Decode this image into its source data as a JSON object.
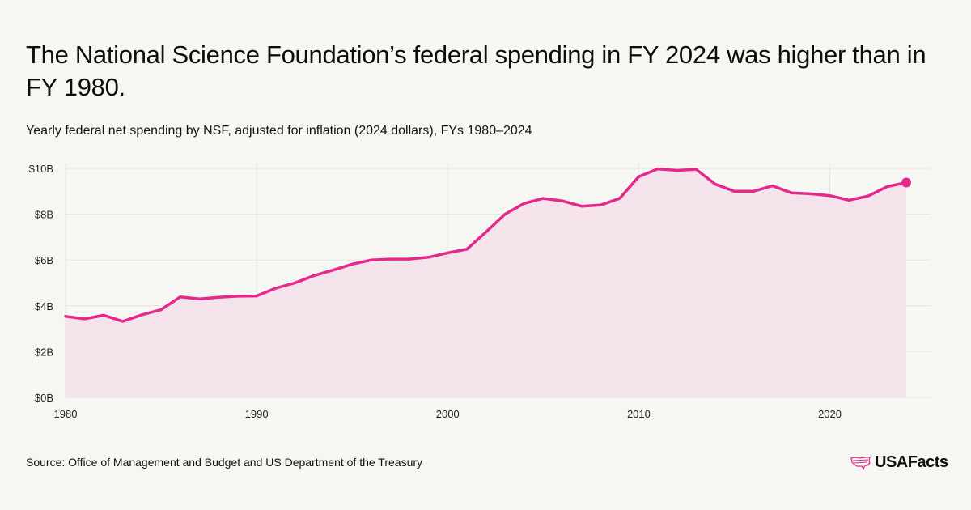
{
  "title": "The National Science Foundation’s federal spending in FY 2024 was higher than in FY 1980.",
  "subtitle": "Yearly federal net spending by NSF, adjusted for inflation (2024 dollars), FYs 1980–2024",
  "source": "Source: Office of Management and Budget and US Department of the Treasury",
  "logo": {
    "text": "USAFacts",
    "icon": "us-map-icon"
  },
  "colors": {
    "line": "#e4288c",
    "area": "#f4e3ea",
    "grid": "#e6e4e2",
    "background": "#f6f6f2"
  },
  "chart_data": {
    "type": "area",
    "title": "Yearly federal net spending by NSF, adjusted for inflation (2024 dollars), FYs 1980–2024",
    "xlabel": "",
    "ylabel": "",
    "x": [
      1980,
      1981,
      1982,
      1983,
      1984,
      1985,
      1986,
      1987,
      1988,
      1989,
      1990,
      1991,
      1992,
      1993,
      1994,
      1995,
      1996,
      1997,
      1998,
      1999,
      2000,
      2001,
      2002,
      2003,
      2004,
      2005,
      2006,
      2007,
      2008,
      2009,
      2010,
      2011,
      2012,
      2013,
      2014,
      2015,
      2016,
      2017,
      2018,
      2019,
      2020,
      2021,
      2022,
      2023,
      2024
    ],
    "series": [
      {
        "name": "NSF net spending (2024 dollars, $B)",
        "values": [
          3.54,
          3.43,
          3.59,
          3.32,
          3.61,
          3.83,
          4.39,
          4.3,
          4.37,
          4.42,
          4.43,
          4.77,
          5.0,
          5.32,
          5.56,
          5.82,
          6.0,
          6.04,
          6.04,
          6.12,
          6.31,
          6.47,
          7.22,
          8.0,
          8.47,
          8.69,
          8.58,
          8.35,
          8.4,
          8.69,
          9.64,
          9.98,
          9.91,
          9.96,
          9.31,
          9.0,
          9.0,
          9.24,
          8.93,
          8.89,
          8.81,
          8.61,
          8.79,
          9.2,
          9.38
        ]
      }
    ],
    "ylim": [
      0,
      10
    ],
    "xlim": [
      1980,
      2025.3
    ],
    "y_ticks": [
      0,
      2,
      4,
      6,
      8,
      10
    ],
    "y_tick_labels": [
      "$0B",
      "$2B",
      "$4B",
      "$6B",
      "$8B",
      "$10B"
    ],
    "x_ticks": [
      1980,
      1990,
      2000,
      2010,
      2020
    ],
    "x_tick_labels": [
      "1980",
      "1990",
      "2000",
      "2010",
      "2020"
    ],
    "grid": true,
    "legend": "none",
    "highlight_last_point": true
  }
}
